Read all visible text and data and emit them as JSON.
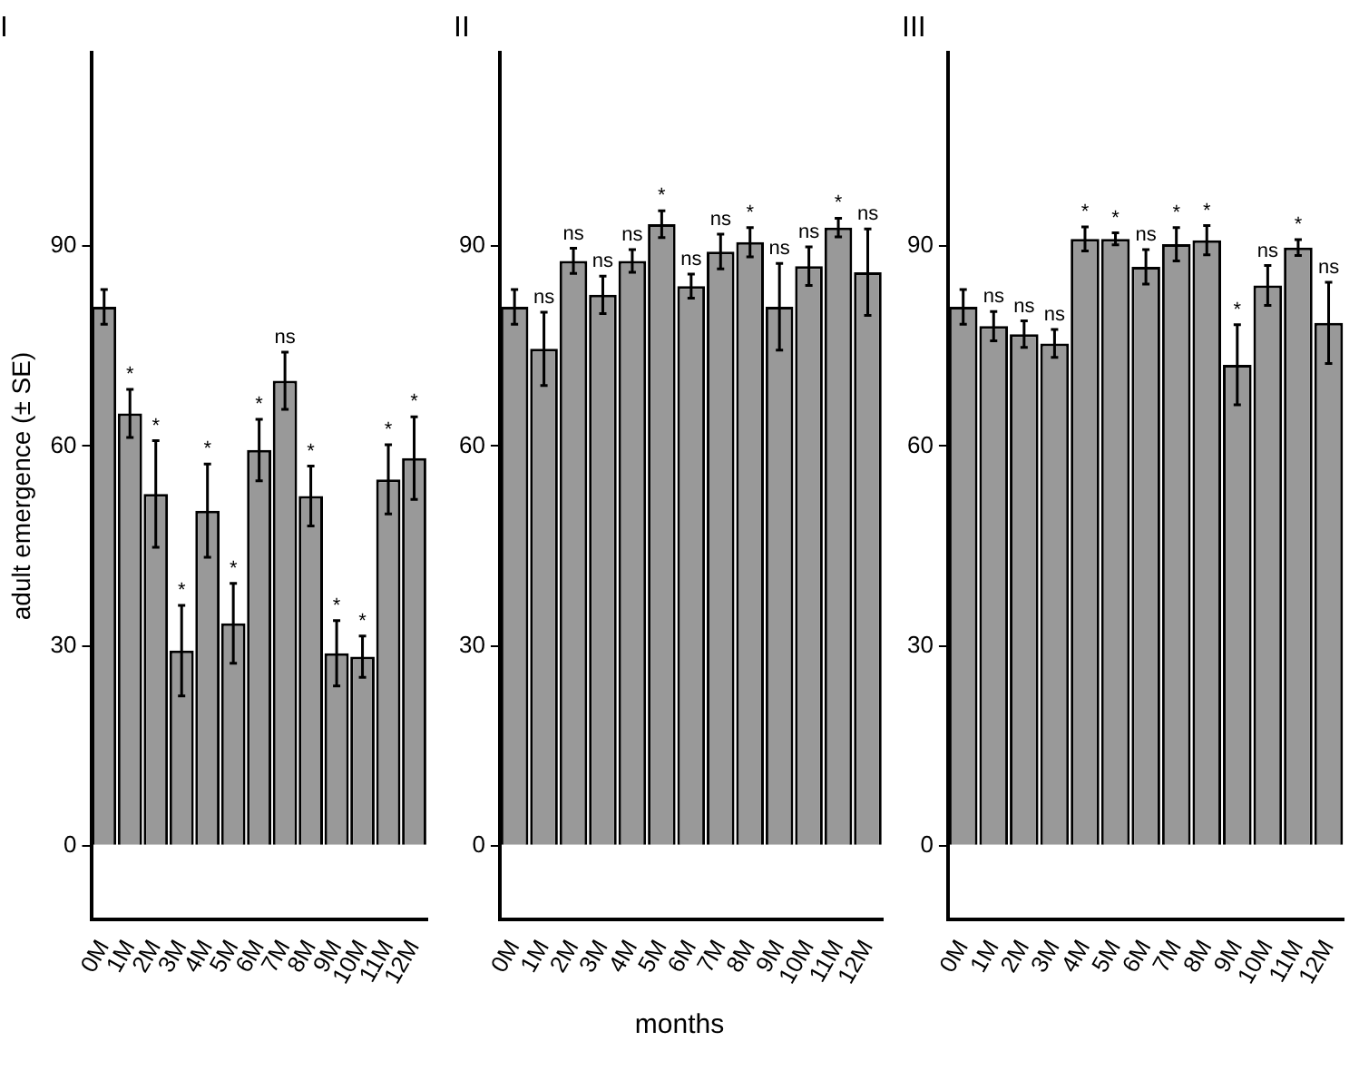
{
  "chart_data": [
    {
      "type": "bar",
      "title": "I",
      "ylabel": "adult emergence (± SE)",
      "categories": [
        "0M",
        "1M",
        "2M",
        "3M",
        "4M",
        "5M",
        "6M",
        "7M",
        "8M",
        "9M",
        "10M",
        "11M",
        "12M"
      ],
      "color": "#999999",
      "values": [
        80.9,
        64.9,
        52.8,
        29.3,
        50.3,
        33.4,
        59.4,
        69.8,
        52.5,
        28.9,
        28.4,
        55.0,
        58.2
      ],
      "errors": [
        2.6,
        3.6,
        8,
        6.8,
        7,
        6,
        4.6,
        4.3,
        4.5,
        4.9,
        3.1,
        5.2,
        6.2
      ],
      "ylim": [
        -11,
        119
      ],
      "yticks": [
        0,
        30,
        60,
        90
      ],
      "grid": false,
      "legend": false,
      "annotations": [
        {
          "text": "*",
          "x": "1M",
          "y": 68.5
        },
        {
          "text": "*",
          "x": "2M",
          "y": 60.8
        },
        {
          "text": "*",
          "x": "3M",
          "y": 36.1
        },
        {
          "text": "*",
          "x": "4M",
          "y": 57.3
        },
        {
          "text": "*",
          "x": "5M",
          "y": 39.4
        },
        {
          "text": "*",
          "x": "6M",
          "y": 64.0
        },
        {
          "text": "ns",
          "x": "7M",
          "y": 74.1
        },
        {
          "text": "*",
          "x": "8M",
          "y": 57.0
        },
        {
          "text": "*",
          "x": "9M",
          "y": 33.8
        },
        {
          "text": "*",
          "x": "10M",
          "y": 31.5
        },
        {
          "text": "*",
          "x": "11M",
          "y": 60.2
        },
        {
          "text": "*",
          "x": "12M",
          "y": 64.4
        }
      ]
    },
    {
      "type": "bar",
      "title": "II",
      "xlabel": "months",
      "categories": [
        "0M",
        "1M",
        "2M",
        "3M",
        "4M",
        "5M",
        "6M",
        "7M",
        "8M",
        "9M",
        "10M",
        "11M",
        "12M"
      ],
      "color": "#999999",
      "values": [
        80.9,
        74.6,
        87.8,
        82.7,
        87.8,
        93.3,
        84.0,
        89.2,
        90.6,
        80.9,
        87.0,
        92.8,
        86.1
      ],
      "errors": [
        2.6,
        5.5,
        1.9,
        2.8,
        1.7,
        2,
        1.8,
        2.6,
        2.2,
        6.5,
        2.9,
        1.4,
        6.5
      ],
      "ylim": [
        -11,
        119
      ],
      "yticks": [
        0,
        30,
        60,
        90
      ],
      "grid": false,
      "legend": false,
      "annotations": [
        {
          "text": "ns",
          "x": "1M",
          "y": 80.1
        },
        {
          "text": "ns",
          "x": "2M",
          "y": 89.7
        },
        {
          "text": "ns",
          "x": "3M",
          "y": 85.5
        },
        {
          "text": "ns",
          "x": "4M",
          "y": 89.5
        },
        {
          "text": "*",
          "x": "5M",
          "y": 95.3
        },
        {
          "text": "ns",
          "x": "6M",
          "y": 85.8
        },
        {
          "text": "ns",
          "x": "7M",
          "y": 91.8
        },
        {
          "text": "*",
          "x": "8M",
          "y": 92.8
        },
        {
          "text": "ns",
          "x": "9M",
          "y": 87.4
        },
        {
          "text": "ns",
          "x": "10M",
          "y": 89.9
        },
        {
          "text": "*",
          "x": "11M",
          "y": 94.2
        },
        {
          "text": "ns",
          "x": "12M",
          "y": 92.6
        }
      ]
    },
    {
      "type": "bar",
      "title": "III",
      "categories": [
        "0M",
        "1M",
        "2M",
        "3M",
        "4M",
        "5M",
        "6M",
        "7M",
        "8M",
        "9M",
        "10M",
        "11M",
        "12M"
      ],
      "color": "#999999",
      "values": [
        80.9,
        78.0,
        76.8,
        75.4,
        91.1,
        91.1,
        86.9,
        90.3,
        90.9,
        72.2,
        84.1,
        89.8,
        78.5
      ],
      "errors": [
        2.6,
        2.2,
        2,
        2.1,
        1.8,
        0.9,
        2.6,
        2.5,
        2.2,
        6,
        3,
        1.2,
        6.1
      ],
      "ylim": [
        -11,
        119
      ],
      "yticks": [
        0,
        30,
        60,
        90
      ],
      "grid": false,
      "legend": false,
      "annotations": [
        {
          "text": "ns",
          "x": "1M",
          "y": 80.2
        },
        {
          "text": "ns",
          "x": "2M",
          "y": 78.8
        },
        {
          "text": "ns",
          "x": "3M",
          "y": 77.5
        },
        {
          "text": "*",
          "x": "4M",
          "y": 92.9
        },
        {
          "text": "*",
          "x": "5M",
          "y": 92.0
        },
        {
          "text": "ns",
          "x": "6M",
          "y": 89.5
        },
        {
          "text": "*",
          "x": "7M",
          "y": 92.8
        },
        {
          "text": "*",
          "x": "8M",
          "y": 93.1
        },
        {
          "text": "*",
          "x": "9M",
          "y": 78.2
        },
        {
          "text": "ns",
          "x": "10M",
          "y": 87.1
        },
        {
          "text": "*",
          "x": "11M",
          "y": 91.0
        },
        {
          "text": "ns",
          "x": "12M",
          "y": 84.6
        }
      ]
    }
  ]
}
